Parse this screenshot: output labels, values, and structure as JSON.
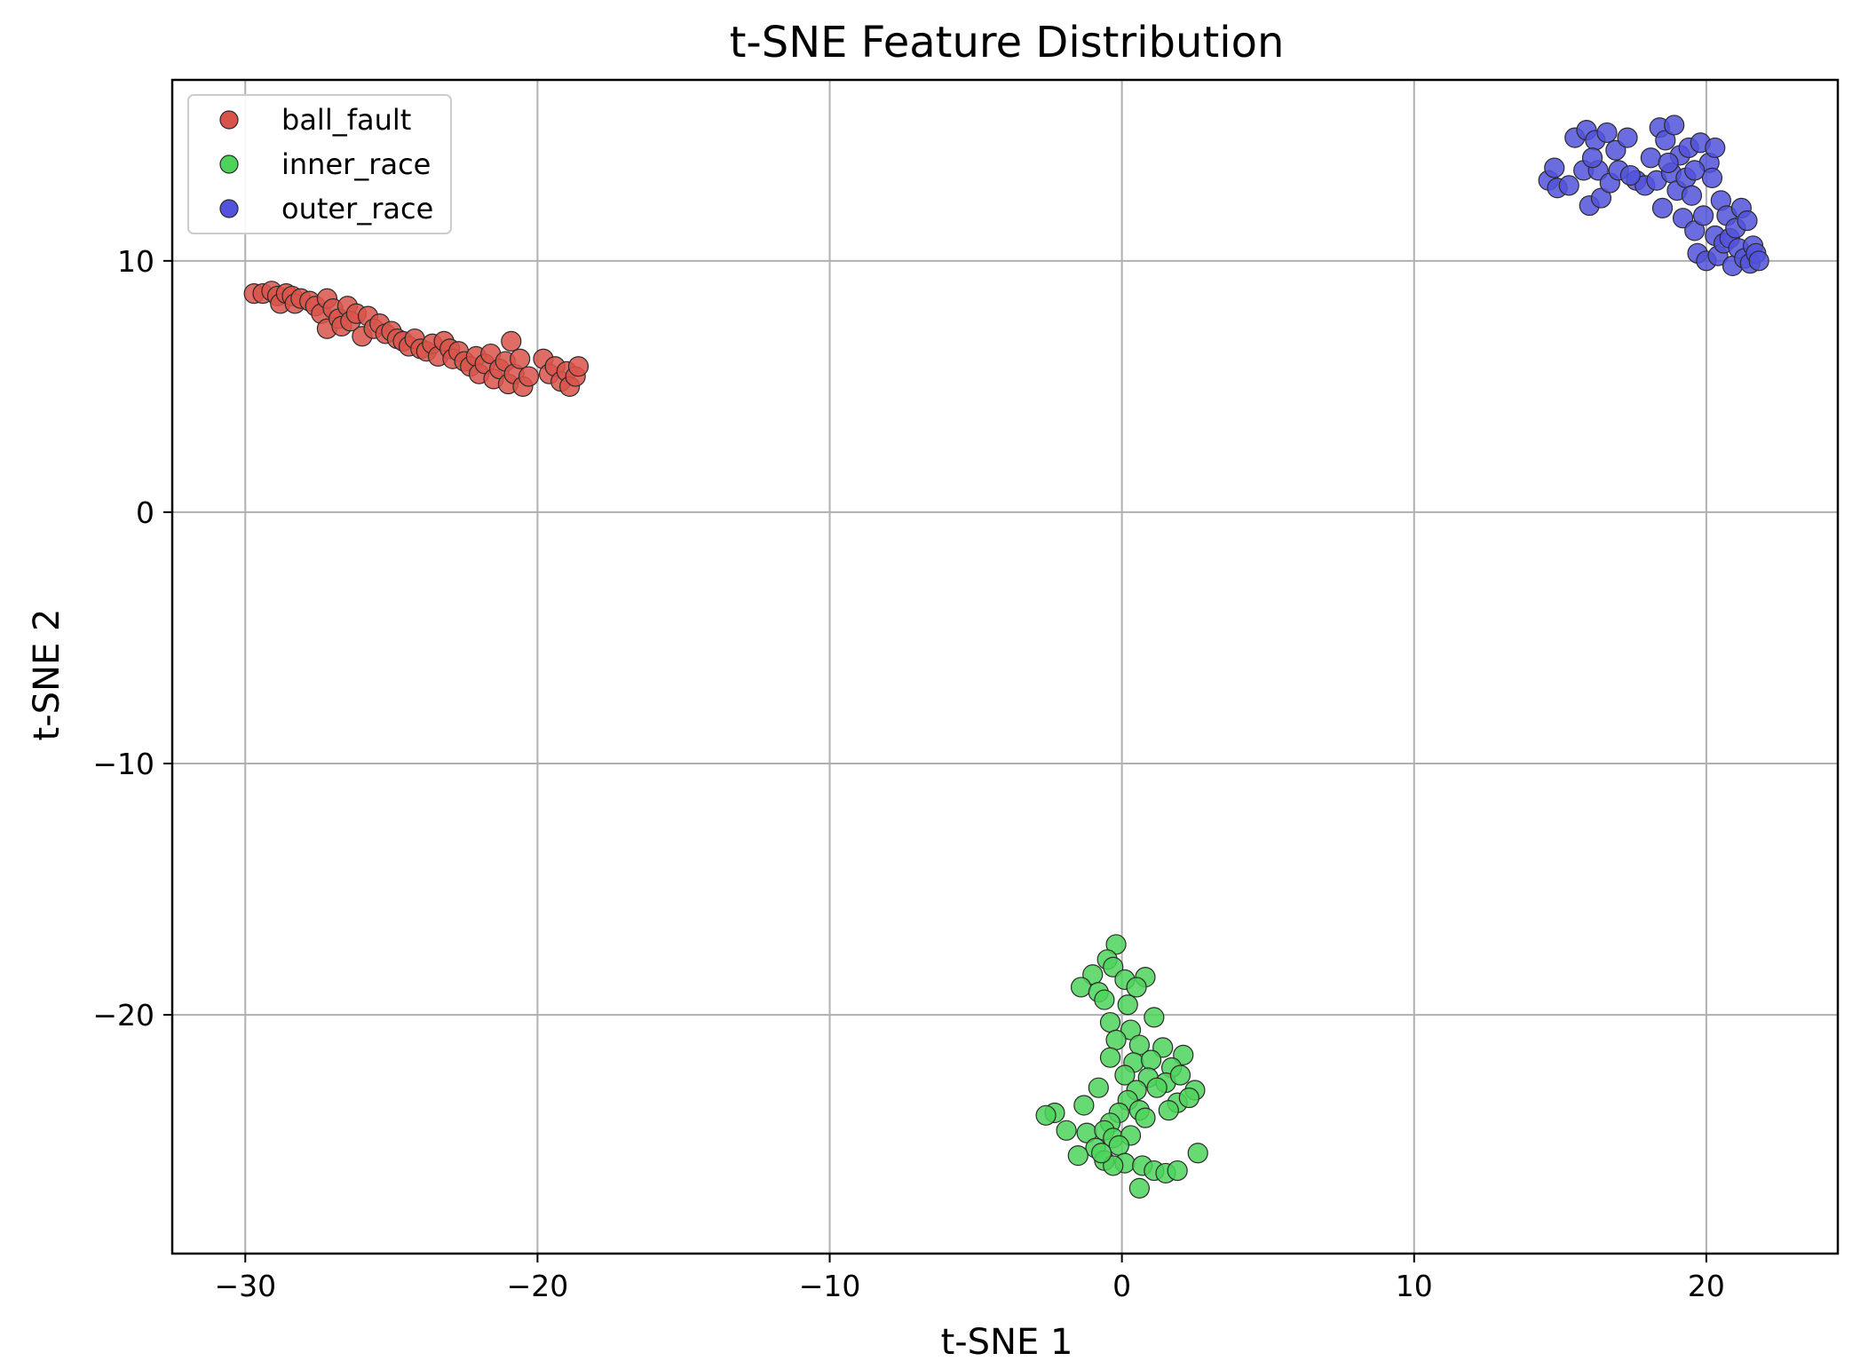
{
  "chart_data": {
    "type": "scatter",
    "title": "t-SNE Feature Distribution",
    "xlabel": "t-SNE 1",
    "ylabel": "t-SNE 2",
    "xlim": [
      -32.5,
      24.5
    ],
    "ylim": [
      -29.5,
      17.2
    ],
    "xticks": [
      -30,
      -20,
      -10,
      0,
      10,
      20
    ],
    "yticks": [
      -20,
      -10,
      0,
      10
    ],
    "xtick_labels": [
      "−30",
      "−20",
      "−10",
      "0",
      "10",
      "20"
    ],
    "ytick_labels": [
      "−20",
      "−10",
      "0",
      "10"
    ],
    "grid": true,
    "legend_position": "top-left",
    "series": [
      {
        "name": "ball_fault",
        "color": "#d9534a",
        "points": [
          [
            -29.7,
            8.7
          ],
          [
            -29.4,
            8.7
          ],
          [
            -29.1,
            8.8
          ],
          [
            -28.9,
            8.6
          ],
          [
            -28.8,
            8.3
          ],
          [
            -28.6,
            8.7
          ],
          [
            -28.4,
            8.6
          ],
          [
            -28.3,
            8.3
          ],
          [
            -28.1,
            8.5
          ],
          [
            -27.8,
            8.4
          ],
          [
            -27.6,
            8.2
          ],
          [
            -27.4,
            7.9
          ],
          [
            -27.2,
            8.5
          ],
          [
            -27.2,
            7.3
          ],
          [
            -27.0,
            8.1
          ],
          [
            -26.8,
            7.7
          ],
          [
            -26.7,
            7.4
          ],
          [
            -26.5,
            8.2
          ],
          [
            -26.4,
            7.6
          ],
          [
            -26.2,
            7.9
          ],
          [
            -26.0,
            7.0
          ],
          [
            -25.8,
            7.8
          ],
          [
            -25.6,
            7.3
          ],
          [
            -25.4,
            7.5
          ],
          [
            -25.2,
            7.1
          ],
          [
            -25.0,
            7.2
          ],
          [
            -24.8,
            6.9
          ],
          [
            -24.6,
            6.8
          ],
          [
            -24.4,
            6.6
          ],
          [
            -24.2,
            6.9
          ],
          [
            -24.0,
            6.5
          ],
          [
            -23.8,
            6.4
          ],
          [
            -23.6,
            6.7
          ],
          [
            -23.4,
            6.2
          ],
          [
            -23.2,
            6.8
          ],
          [
            -23.0,
            6.5
          ],
          [
            -22.9,
            6.1
          ],
          [
            -22.7,
            6.4
          ],
          [
            -22.5,
            6.0
          ],
          [
            -22.3,
            5.8
          ],
          [
            -22.1,
            6.2
          ],
          [
            -22.0,
            5.5
          ],
          [
            -21.8,
            5.9
          ],
          [
            -21.6,
            6.3
          ],
          [
            -21.5,
            5.3
          ],
          [
            -21.3,
            5.7
          ],
          [
            -21.1,
            6.0
          ],
          [
            -21.0,
            5.1
          ],
          [
            -20.9,
            6.8
          ],
          [
            -20.8,
            5.5
          ],
          [
            -20.6,
            6.1
          ],
          [
            -20.5,
            5.0
          ],
          [
            -20.3,
            5.4
          ],
          [
            -19.8,
            6.1
          ],
          [
            -19.6,
            5.5
          ],
          [
            -19.4,
            5.8
          ],
          [
            -19.2,
            5.2
          ],
          [
            -19.0,
            5.6
          ],
          [
            -18.9,
            5.0
          ],
          [
            -18.7,
            5.4
          ],
          [
            -18.6,
            5.8
          ]
        ]
      },
      {
        "name": "inner_race",
        "color": "#4cd45a",
        "points": [
          [
            -0.2,
            -17.2
          ],
          [
            -0.5,
            -17.8
          ],
          [
            -0.3,
            -18.1
          ],
          [
            -1.0,
            -18.4
          ],
          [
            0.1,
            -18.6
          ],
          [
            0.8,
            -18.5
          ],
          [
            -1.4,
            -18.9
          ],
          [
            -0.8,
            -19.1
          ],
          [
            0.5,
            -18.9
          ],
          [
            -0.6,
            -19.4
          ],
          [
            0.2,
            -19.6
          ],
          [
            -0.4,
            -20.3
          ],
          [
            0.3,
            -20.6
          ],
          [
            1.1,
            -20.1
          ],
          [
            -0.2,
            -21.0
          ],
          [
            0.6,
            -21.2
          ],
          [
            1.4,
            -21.3
          ],
          [
            2.1,
            -21.6
          ],
          [
            -0.4,
            -21.7
          ],
          [
            0.4,
            -21.9
          ],
          [
            1.0,
            -21.8
          ],
          [
            1.7,
            -22.1
          ],
          [
            0.1,
            -22.4
          ],
          [
            0.9,
            -22.5
          ],
          [
            1.5,
            -22.7
          ],
          [
            2.0,
            -22.4
          ],
          [
            -0.8,
            -22.9
          ],
          [
            0.5,
            -23.0
          ],
          [
            1.2,
            -22.9
          ],
          [
            2.5,
            -23.0
          ],
          [
            0.2,
            -23.4
          ],
          [
            1.9,
            -23.5
          ],
          [
            -1.3,
            -23.6
          ],
          [
            0.6,
            -23.8
          ],
          [
            -0.1,
            -23.9
          ],
          [
            1.6,
            -23.8
          ],
          [
            -2.3,
            -23.9
          ],
          [
            -2.6,
            -24.0
          ],
          [
            0.8,
            -24.1
          ],
          [
            -0.4,
            -24.3
          ],
          [
            2.3,
            -23.3
          ],
          [
            -1.9,
            -24.6
          ],
          [
            -1.2,
            -24.7
          ],
          [
            -0.6,
            -24.6
          ],
          [
            -0.3,
            -24.9
          ],
          [
            0.3,
            -24.8
          ],
          [
            -0.9,
            -25.3
          ],
          [
            -0.1,
            -25.2
          ],
          [
            -1.5,
            -25.6
          ],
          [
            -0.6,
            -25.8
          ],
          [
            0.1,
            -25.9
          ],
          [
            0.7,
            -26.0
          ],
          [
            1.1,
            -26.2
          ],
          [
            1.5,
            -26.3
          ],
          [
            1.9,
            -26.2
          ],
          [
            2.6,
            -25.5
          ],
          [
            0.6,
            -26.9
          ],
          [
            -0.3,
            -26.0
          ],
          [
            -0.7,
            -25.5
          ]
        ]
      },
      {
        "name": "outer_race",
        "color": "#5252dc",
        "points": [
          [
            14.6,
            13.2
          ],
          [
            14.8,
            13.7
          ],
          [
            14.9,
            12.9
          ],
          [
            15.3,
            13.0
          ],
          [
            15.5,
            14.9
          ],
          [
            15.8,
            13.6
          ],
          [
            15.9,
            15.2
          ],
          [
            16.0,
            12.2
          ],
          [
            16.2,
            14.8
          ],
          [
            16.3,
            13.6
          ],
          [
            16.4,
            12.5
          ],
          [
            16.6,
            15.1
          ],
          [
            16.7,
            13.1
          ],
          [
            16.9,
            14.4
          ],
          [
            17.0,
            13.6
          ],
          [
            17.3,
            14.9
          ],
          [
            17.6,
            13.2
          ],
          [
            17.9,
            13.0
          ],
          [
            18.1,
            14.1
          ],
          [
            18.3,
            13.2
          ],
          [
            18.4,
            15.3
          ],
          [
            18.5,
            12.1
          ],
          [
            18.6,
            14.8
          ],
          [
            18.8,
            13.5
          ],
          [
            18.9,
            15.4
          ],
          [
            19.0,
            12.8
          ],
          [
            19.1,
            14.2
          ],
          [
            19.2,
            11.7
          ],
          [
            19.3,
            13.3
          ],
          [
            19.4,
            14.5
          ],
          [
            19.5,
            12.6
          ],
          [
            19.6,
            11.2
          ],
          [
            19.7,
            10.3
          ],
          [
            19.8,
            14.7
          ],
          [
            19.9,
            11.8
          ],
          [
            20.0,
            10.0
          ],
          [
            20.1,
            13.9
          ],
          [
            20.2,
            13.3
          ],
          [
            20.3,
            11.0
          ],
          [
            20.4,
            10.2
          ],
          [
            20.5,
            12.4
          ],
          [
            20.6,
            10.7
          ],
          [
            20.7,
            11.8
          ],
          [
            20.8,
            10.9
          ],
          [
            20.9,
            9.8
          ],
          [
            21.0,
            11.3
          ],
          [
            21.1,
            10.5
          ],
          [
            21.2,
            12.1
          ],
          [
            21.3,
            10.1
          ],
          [
            21.4,
            11.6
          ],
          [
            21.5,
            9.9
          ],
          [
            21.6,
            10.6
          ],
          [
            21.7,
            10.3
          ],
          [
            21.8,
            10.0
          ],
          [
            18.7,
            13.9
          ],
          [
            17.4,
            13.4
          ],
          [
            19.6,
            13.6
          ],
          [
            16.1,
            14.1
          ],
          [
            20.3,
            14.5
          ]
        ]
      }
    ]
  }
}
